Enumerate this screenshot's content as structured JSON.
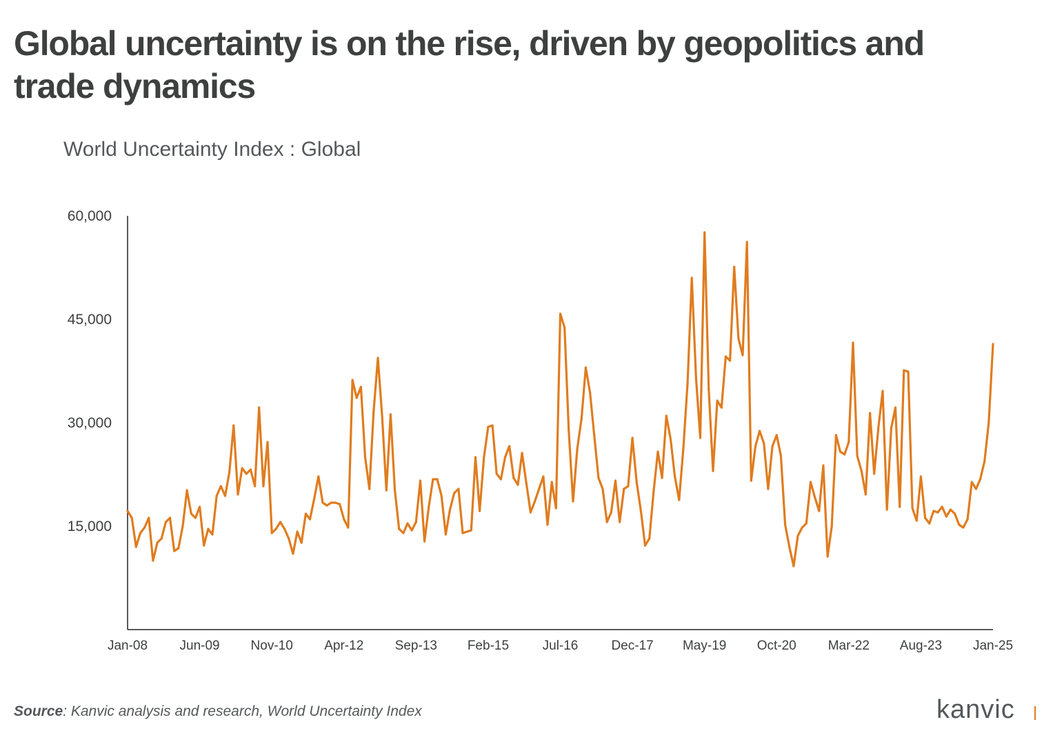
{
  "title": "Global uncertainty is on the rise, driven by geopolitics and trade dynamics",
  "subtitle": "World Uncertainty Index : Global",
  "source": {
    "label": "Source",
    "text": ": Kanvic analysis and research, World Uncertainty Index"
  },
  "logo": {
    "text": "kanvic",
    "accent_color": "#e07c1f"
  },
  "chart_data": {
    "type": "line",
    "title": "World Uncertainty Index : Global",
    "xlabel": "",
    "ylabel": "",
    "ylim": [
      0,
      60000
    ],
    "yticks": [
      15000,
      30000,
      45000,
      60000
    ],
    "ytick_labels": [
      "15,000",
      "30,000",
      "45,000",
      "60,000"
    ],
    "xticks": [
      "Jan-08",
      "Jun-09",
      "Nov-10",
      "Apr-12",
      "Sep-13",
      "Feb-15",
      "Jul-16",
      "Dec-17",
      "May-19",
      "Oct-20",
      "Mar-22",
      "Aug-23",
      "Jan-25"
    ],
    "x_start": "Jan-08",
    "x_end": "Jan-25",
    "grid": false,
    "legend": "none",
    "color": "#e07c1f",
    "series": [
      {
        "values": [
          17200,
          16200,
          12000,
          14000,
          14800,
          16200,
          10000,
          12600,
          13200,
          15600,
          16200,
          11400,
          11800,
          15000,
          20200,
          16800,
          16200,
          17800,
          12200,
          14600,
          13800,
          19400,
          20800,
          19400,
          22800,
          29600,
          19600,
          23400,
          22600,
          23200,
          20800,
          32200,
          20800,
          27200,
          14000,
          14600,
          15600,
          14600,
          13200,
          11000,
          14200,
          12600,
          16800,
          16000,
          19000,
          22200,
          18400,
          18000,
          18400,
          18400,
          18200,
          16000,
          14800,
          36200,
          33600,
          35200,
          25000,
          20400,
          31600,
          39400,
          31000,
          20200,
          31200,
          20200,
          14600,
          14000,
          15400,
          14400,
          15600,
          21600,
          12800,
          17800,
          21800,
          21800,
          19400,
          13800,
          17400,
          19800,
          20400,
          14000,
          14200,
          14400,
          25000,
          17200,
          25000,
          29400,
          29600,
          22600,
          21800,
          25000,
          26600,
          22000,
          21000,
          25600,
          21200,
          17000,
          18600,
          20400,
          22200,
          15200,
          21400,
          17600,
          45800,
          43800,
          28800,
          18600,
          26200,
          30600,
          38000,
          34400,
          28200,
          22000,
          20400,
          15600,
          17000,
          21600,
          15600,
          20400,
          20800,
          27800,
          21400,
          17200,
          12200,
          13200,
          20000,
          25800,
          22000,
          31000,
          27600,
          22200,
          18800,
          26200,
          35800,
          51000,
          36400,
          27800,
          57600,
          34800,
          23000,
          33200,
          32200,
          39600,
          39000,
          52600,
          42200,
          39800,
          56200,
          21600,
          26600,
          28800,
          27000,
          20400,
          26600,
          28200,
          25200,
          15200,
          12000,
          9200,
          13600,
          14800,
          15400,
          21400,
          19200,
          17200,
          23800,
          10600,
          15000,
          28200,
          25800,
          25400,
          27200,
          41600,
          25200,
          23000,
          19600,
          31400,
          22600,
          29400,
          34600,
          17400,
          29200,
          32200,
          17800,
          37600,
          37400,
          17600,
          15800,
          22200,
          16200,
          15400,
          17200,
          17000,
          17800,
          16400,
          17400,
          16800,
          15200,
          14800,
          16000,
          21400,
          20400,
          21800,
          24400,
          30000,
          41400
        ]
      }
    ]
  }
}
